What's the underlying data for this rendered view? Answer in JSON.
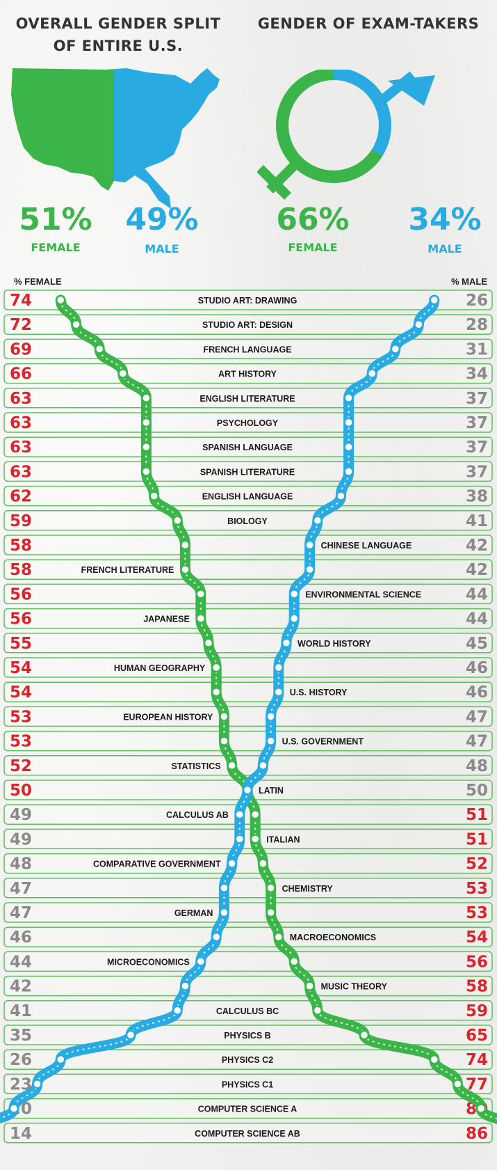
{
  "header": {
    "left_title_line1": "OVERALL GENDER SPLIT",
    "left_title_line2": "OF ENTIRE U.S.",
    "right_title": "GENDER OF EXAM-TAKERS"
  },
  "us_split": {
    "female_pct": "51%",
    "female_label": "FEMALE",
    "male_pct": "49%",
    "male_label": "MALE"
  },
  "exam_split": {
    "female_pct": "66%",
    "female_label": "FEMALE",
    "male_pct": "34%",
    "male_label": "MALE"
  },
  "colors": {
    "female": "#3bb54a",
    "male": "#29abe2",
    "majority": "#d9262c",
    "minority": "#8a8a8a"
  },
  "chart_data": {
    "type": "table",
    "column_left": "% FEMALE",
    "column_right": "% MALE",
    "rows": [
      {
        "subject": "STUDIO ART: DRAWING",
        "female": 74,
        "male": 26
      },
      {
        "subject": "STUDIO ART: DESIGN",
        "female": 72,
        "male": 28
      },
      {
        "subject": "FRENCH LANGUAGE",
        "female": 69,
        "male": 31
      },
      {
        "subject": "ART HISTORY",
        "female": 66,
        "male": 34
      },
      {
        "subject": "ENGLISH LITERATURE",
        "female": 63,
        "male": 37
      },
      {
        "subject": "PSYCHOLOGY",
        "female": 63,
        "male": 37
      },
      {
        "subject": "SPANISH LANGUAGE",
        "female": 63,
        "male": 37
      },
      {
        "subject": "SPANISH LITERATURE",
        "female": 63,
        "male": 37
      },
      {
        "subject": "ENGLISH LANGUAGE",
        "female": 62,
        "male": 38
      },
      {
        "subject": "BIOLOGY",
        "female": 59,
        "male": 41
      },
      {
        "subject": "CHINESE LANGUAGE",
        "female": 58,
        "male": 42
      },
      {
        "subject": "FRENCH LITERATURE",
        "female": 58,
        "male": 42
      },
      {
        "subject": "ENVIRONMENTAL SCIENCE",
        "female": 56,
        "male": 44
      },
      {
        "subject": "JAPANESE",
        "female": 56,
        "male": 44
      },
      {
        "subject": "WORLD HISTORY",
        "female": 55,
        "male": 45
      },
      {
        "subject": "HUMAN GEOGRAPHY",
        "female": 54,
        "male": 46
      },
      {
        "subject": "U.S. HISTORY",
        "female": 54,
        "male": 46
      },
      {
        "subject": "EUROPEAN HISTORY",
        "female": 53,
        "male": 47
      },
      {
        "subject": "U.S. GOVERNMENT",
        "female": 53,
        "male": 47
      },
      {
        "subject": "STATISTICS",
        "female": 52,
        "male": 48
      },
      {
        "subject": "LATIN",
        "female": 50,
        "male": 50
      },
      {
        "subject": "CALCULUS AB",
        "female": 49,
        "male": 51
      },
      {
        "subject": "ITALIAN",
        "female": 49,
        "male": 51
      },
      {
        "subject": "COMPARATIVE GOVERNMENT",
        "female": 48,
        "male": 52
      },
      {
        "subject": "CHEMISTRY",
        "female": 47,
        "male": 53
      },
      {
        "subject": "GERMAN",
        "female": 47,
        "male": 53
      },
      {
        "subject": "MACROECONOMICS",
        "female": 46,
        "male": 54
      },
      {
        "subject": "MICROECONOMICS",
        "female": 44,
        "male": 56
      },
      {
        "subject": "MUSIC THEORY",
        "female": 42,
        "male": 58
      },
      {
        "subject": "CALCULUS BC",
        "female": 41,
        "male": 59
      },
      {
        "subject": "PHYSICS B",
        "female": 35,
        "male": 65
      },
      {
        "subject": "PHYSICS C2",
        "female": 26,
        "male": 74
      },
      {
        "subject": "PHYSICS C1",
        "female": 23,
        "male": 77
      },
      {
        "subject": "COMPUTER SCIENCE A",
        "female": 20,
        "male": 80
      },
      {
        "subject": "COMPUTER SCIENCE AB",
        "female": 14,
        "male": 86
      }
    ]
  }
}
